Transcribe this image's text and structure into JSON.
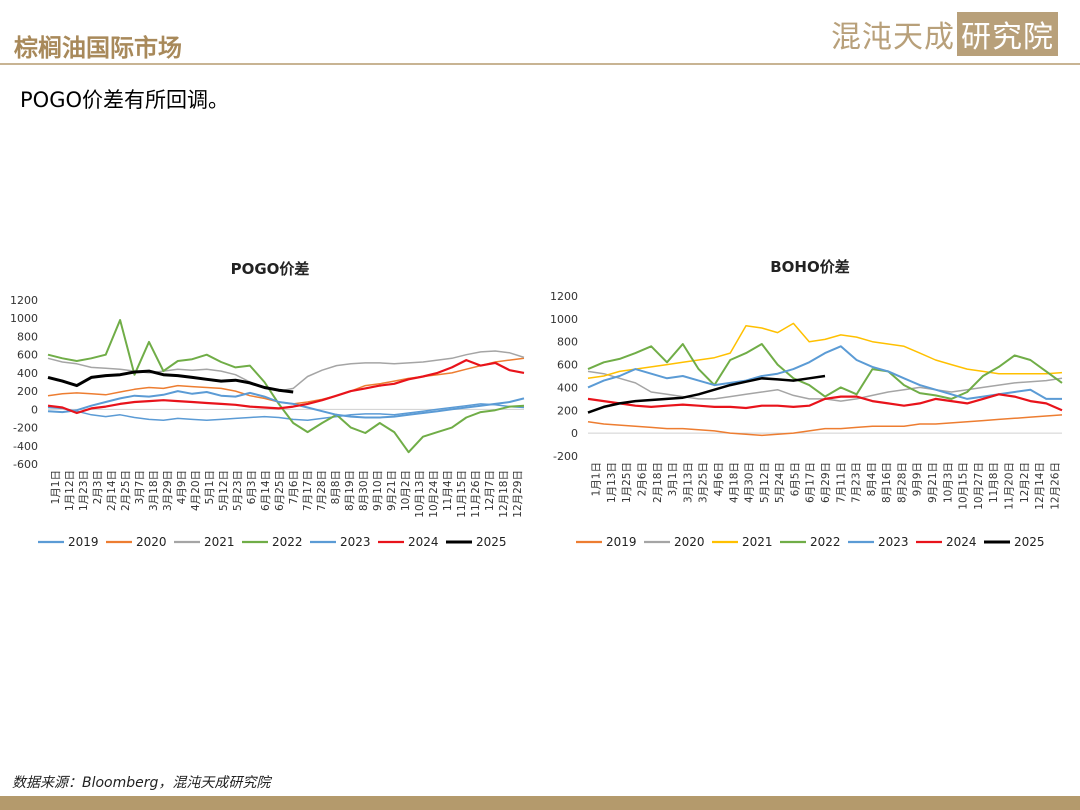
{
  "header": {
    "title": "棕榈油国际市场",
    "logo_main": "混沌天成",
    "logo_box": "研究院"
  },
  "subtitle": "POGO价差有所回调。",
  "source": "数据来源：Bloomberg，混沌天成研究院",
  "chart_data": [
    {
      "type": "line",
      "title": "POGO价差",
      "ylim": [
        -600,
        1200
      ],
      "yticks": [
        1200,
        1000,
        800,
        600,
        400,
        200,
        0,
        -200,
        -400,
        -600
      ],
      "x_labels": [
        "1月1日",
        "1月12日",
        "1月23日",
        "2月3日",
        "2月14日",
        "2月25日",
        "3月7日",
        "3月18日",
        "3月29日",
        "4月9日",
        "4月20日",
        "5月1日",
        "5月12日",
        "5月23日",
        "6月3日",
        "6月14日",
        "6月25日",
        "7月6日",
        "7月17日",
        "7月28日",
        "8月8日",
        "8月19日",
        "8月30日",
        "9月10日",
        "9月21日",
        "10月2日",
        "10月13日",
        "10月24日",
        "11月4日",
        "11月15日",
        "11月26日",
        "12月7日",
        "12月18日",
        "12月29日"
      ],
      "legend_position": "bottom",
      "series": [
        {
          "name": "2019",
          "color": "#5b9bd5",
          "width": 1.5,
          "values": [
            20,
            10,
            -20,
            -60,
            -80,
            -60,
            -90,
            -110,
            -120,
            -100,
            -110,
            -120,
            -110,
            -100,
            -90,
            -80,
            -90,
            -110,
            -120,
            -100,
            -80,
            -60,
            -50,
            -50,
            -60,
            -40,
            -20,
            0,
            20,
            40,
            60,
            50,
            30,
            20
          ]
        },
        {
          "name": "2020",
          "color": "#ed7d31",
          "width": 1.5,
          "values": [
            150,
            170,
            180,
            170,
            160,
            190,
            220,
            240,
            230,
            260,
            250,
            240,
            230,
            200,
            150,
            120,
            80,
            60,
            80,
            110,
            150,
            200,
            260,
            280,
            310,
            340,
            360,
            380,
            400,
            440,
            480,
            520,
            540,
            560
          ]
        },
        {
          "name": "2021",
          "color": "#a5a5a5",
          "width": 1.5,
          "values": [
            560,
            520,
            500,
            460,
            450,
            440,
            420,
            400,
            420,
            440,
            430,
            440,
            420,
            380,
            300,
            240,
            200,
            230,
            360,
            430,
            480,
            500,
            510,
            510,
            500,
            510,
            520,
            540,
            560,
            600,
            630,
            640,
            620,
            570
          ]
        },
        {
          "name": "2022",
          "color": "#70ad47",
          "width": 2,
          "values": [
            600,
            560,
            530,
            560,
            600,
            980,
            380,
            740,
            420,
            530,
            550,
            600,
            520,
            460,
            480,
            300,
            60,
            -150,
            -250,
            -150,
            -60,
            -200,
            -260,
            -150,
            -250,
            -470,
            -300,
            -250,
            -200,
            -90,
            -30,
            -10,
            30,
            40
          ]
        },
        {
          "name": "2023",
          "color": "#5b9bd5",
          "width": 2,
          "values": [
            -20,
            -30,
            -10,
            40,
            80,
            120,
            150,
            140,
            160,
            200,
            170,
            190,
            150,
            140,
            180,
            140,
            80,
            60,
            20,
            -20,
            -60,
            -80,
            -90,
            -90,
            -80,
            -60,
            -40,
            -20,
            0,
            20,
            40,
            60,
            80,
            120
          ]
        },
        {
          "name": "2024",
          "color": "#e8131b",
          "width": 2.2,
          "values": [
            40,
            20,
            -40,
            10,
            30,
            60,
            80,
            90,
            100,
            90,
            80,
            70,
            60,
            50,
            30,
            20,
            10,
            30,
            60,
            100,
            150,
            200,
            230,
            260,
            280,
            330,
            360,
            400,
            460,
            540,
            480,
            510,
            430,
            400
          ]
        },
        {
          "name": "2025",
          "color": "#000000",
          "width": 3,
          "values": [
            350,
            310,
            260,
            350,
            370,
            380,
            410,
            420,
            380,
            370,
            350,
            330,
            310,
            320,
            290,
            240,
            210,
            190
          ]
        }
      ]
    },
    {
      "type": "line",
      "title": "BOHO价差",
      "ylim": [
        -200,
        1200
      ],
      "yticks": [
        1200,
        1000,
        800,
        600,
        400,
        200,
        0,
        -200
      ],
      "x_labels": [
        "1月1日",
        "1月13日",
        "1月25日",
        "2月6日",
        "2月18日",
        "3月1日",
        "3月13日",
        "3月25日",
        "4月6日",
        "4月18日",
        "4月30日",
        "5月12日",
        "5月24日",
        "6月5日",
        "6月17日",
        "6月29日",
        "7月11日",
        "7月23日",
        "8月4日",
        "8月16日",
        "8月28日",
        "9月9日",
        "9月21日",
        "10月3日",
        "10月15日",
        "10月27日",
        "11月8日",
        "11月20日",
        "12月2日",
        "12月14日",
        "12月26日"
      ],
      "legend_position": "bottom",
      "series": [
        {
          "name": "2019",
          "color": "#ed7d31",
          "width": 1.5,
          "values": [
            100,
            80,
            70,
            60,
            50,
            40,
            40,
            30,
            20,
            0,
            -10,
            -20,
            -10,
            0,
            20,
            40,
            40,
            50,
            60,
            60,
            60,
            80,
            80,
            90,
            100,
            110,
            120,
            130,
            140,
            150,
            160
          ]
        },
        {
          "name": "2020",
          "color": "#a5a5a5",
          "width": 1.5,
          "values": [
            540,
            520,
            480,
            440,
            360,
            340,
            320,
            300,
            300,
            320,
            340,
            360,
            380,
            330,
            300,
            300,
            280,
            300,
            330,
            360,
            380,
            400,
            380,
            360,
            380,
            400,
            420,
            440,
            450,
            460,
            480
          ]
        },
        {
          "name": "2021",
          "color": "#ffc000",
          "width": 1.5,
          "values": [
            480,
            500,
            540,
            560,
            580,
            600,
            620,
            640,
            660,
            700,
            940,
            920,
            880,
            960,
            800,
            820,
            860,
            840,
            800,
            780,
            760,
            700,
            640,
            600,
            560,
            540,
            520,
            520,
            520,
            520,
            530
          ]
        },
        {
          "name": "2022",
          "color": "#70ad47",
          "width": 2,
          "values": [
            560,
            620,
            650,
            700,
            760,
            620,
            780,
            560,
            420,
            640,
            700,
            780,
            600,
            480,
            420,
            320,
            400,
            340,
            560,
            540,
            420,
            350,
            330,
            300,
            360,
            500,
            580,
            680,
            640,
            540,
            440
          ]
        },
        {
          "name": "2023",
          "color": "#5b9bd5",
          "width": 2,
          "values": [
            400,
            460,
            500,
            560,
            520,
            480,
            500,
            460,
            420,
            440,
            460,
            500,
            520,
            560,
            620,
            700,
            760,
            640,
            580,
            540,
            480,
            420,
            380,
            340,
            300,
            320,
            340,
            360,
            380,
            300,
            300
          ]
        },
        {
          "name": "2024",
          "color": "#e8131b",
          "width": 2.2,
          "values": [
            300,
            280,
            260,
            240,
            230,
            240,
            250,
            240,
            230,
            230,
            220,
            240,
            240,
            230,
            240,
            300,
            320,
            320,
            280,
            260,
            240,
            260,
            300,
            280,
            260,
            300,
            340,
            320,
            280,
            260,
            200
          ]
        },
        {
          "name": "2025",
          "color": "#000000",
          "width": 2.5,
          "values": [
            180,
            230,
            260,
            280,
            290,
            300,
            310,
            340,
            380,
            420,
            450,
            480,
            470,
            460,
            480,
            500
          ]
        }
      ]
    }
  ]
}
